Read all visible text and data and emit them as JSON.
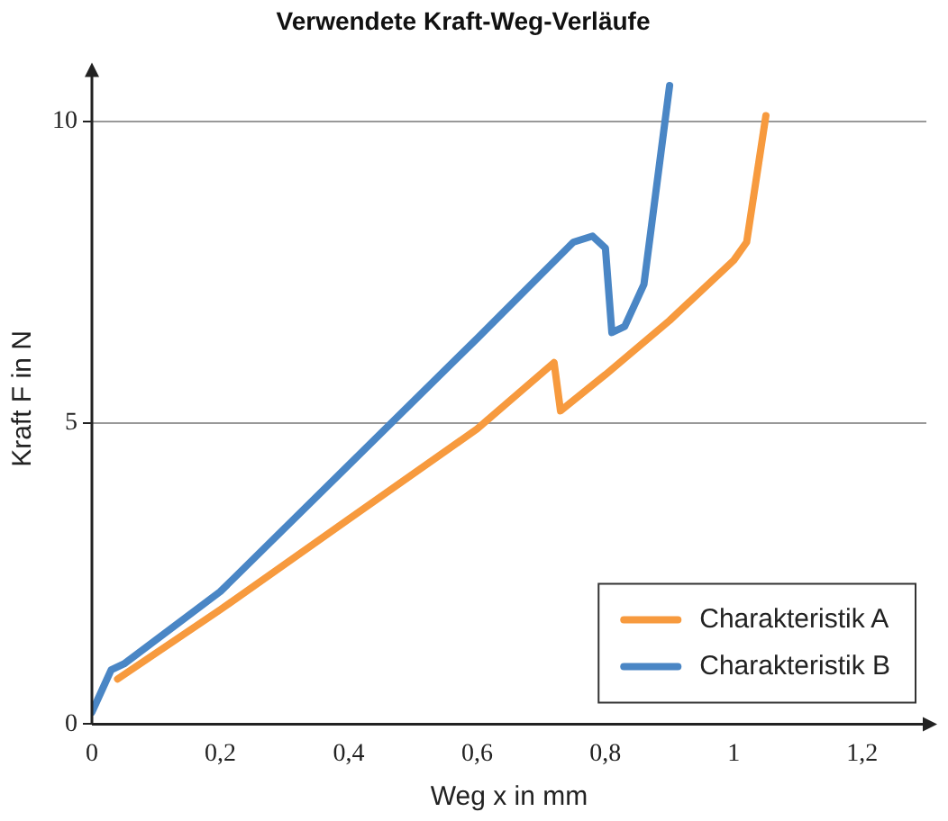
{
  "chart_data": {
    "type": "line",
    "title": "Verwendete Kraft-Weg-Verläufe",
    "xlabel": "Weg x in mm",
    "ylabel": "Kraft F in N",
    "xlim": [
      0,
      1.3
    ],
    "ylim": [
      0,
      10.8
    ],
    "xticks": [
      0,
      {
        "value": 0.2,
        "label": "0,2"
      },
      {
        "value": 0.4,
        "label": "0,4"
      },
      {
        "value": 0.6,
        "label": "0,6"
      },
      {
        "value": 0.8,
        "label": "0,8"
      },
      1,
      {
        "value": 1.2,
        "label": "1,2"
      }
    ],
    "yticks": [
      0,
      5,
      10
    ],
    "grid": "y",
    "legend": "bottom right",
    "marker": "none",
    "line_style": "solid",
    "series": [
      {
        "name": "Charakteristik A",
        "color": "#f79a3e",
        "x": [
          0.04,
          0.2,
          0.4,
          0.6,
          0.72,
          0.73,
          0.8,
          0.9,
          1.0,
          1.02,
          1.05
        ],
        "values": [
          0.75,
          1.9,
          3.4,
          4.9,
          6.0,
          5.2,
          5.8,
          6.7,
          7.7,
          8.0,
          10.1
        ]
      },
      {
        "name": "Charakteristik B",
        "color": "#4a86c5",
        "x": [
          0,
          0.03,
          0.05,
          0.2,
          0.4,
          0.6,
          0.75,
          0.78,
          0.8,
          0.81,
          0.83,
          0.86,
          0.9
        ],
        "values": [
          0.2,
          0.9,
          1.0,
          2.2,
          4.3,
          6.4,
          8.0,
          8.1,
          7.9,
          6.5,
          6.6,
          7.3,
          10.6
        ]
      }
    ]
  }
}
